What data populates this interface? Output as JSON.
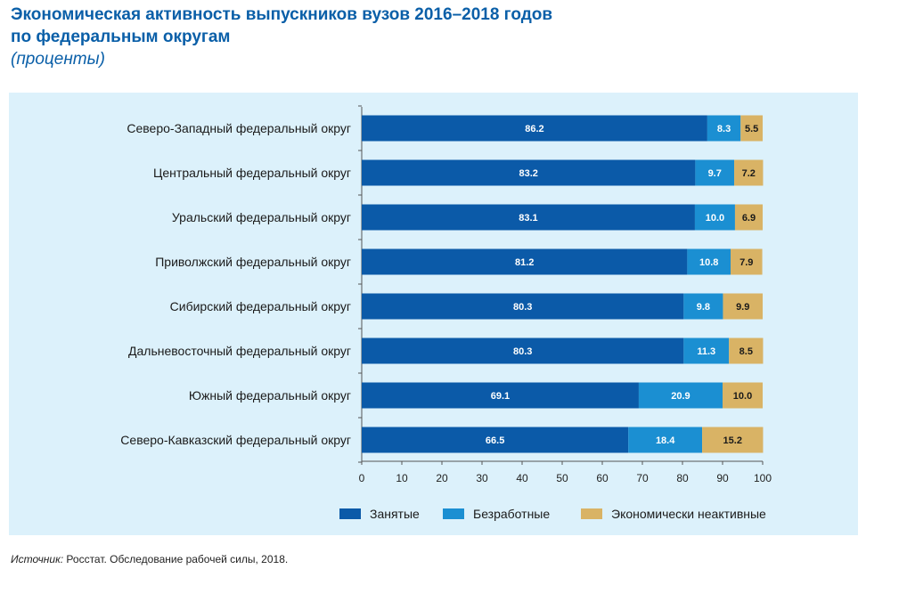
{
  "title_line1": "Экономическая активность выпускников вузов 2016–2018 годов",
  "title_line2": "по федеральным округам",
  "subtitle": "(проценты)",
  "source_prefix": "Источник:",
  "source_text": " Росстат. Обследование рабочей силы, 2018.",
  "chart_data": {
    "type": "bar",
    "orientation": "horizontal",
    "stacked": true,
    "categories": [
      "Северо-Западный федеральный округ",
      "Центральный федеральный округ",
      "Уральский федеральный округ",
      "Приволжский федеральный округ",
      "Сибирский федеральный округ",
      "Дальневосточный федеральный округ",
      "Южный федеральный округ",
      "Северо-Кавказский федеральный округ"
    ],
    "series": [
      {
        "name": "Занятые",
        "color": "#0b5aa8",
        "label_color": "#ffffff",
        "values": [
          86.2,
          83.2,
          83.1,
          81.2,
          80.3,
          80.3,
          69.1,
          66.5
        ]
      },
      {
        "name": "Безработные",
        "color": "#1b8fd2",
        "label_color": "#ffffff",
        "values": [
          8.3,
          9.7,
          10.0,
          10.8,
          9.8,
          11.3,
          20.9,
          18.4
        ]
      },
      {
        "name": "Экономически неактивные",
        "color": "#d9b365",
        "label_color": "#1a1a1a",
        "values": [
          5.5,
          7.2,
          6.9,
          7.9,
          9.9,
          8.5,
          10.0,
          15.2
        ]
      }
    ],
    "xlim": [
      0,
      100
    ],
    "xticks": [
      0,
      10,
      20,
      30,
      40,
      50,
      60,
      70,
      80,
      90,
      100
    ],
    "grid": false,
    "legend_position": "bottom"
  }
}
